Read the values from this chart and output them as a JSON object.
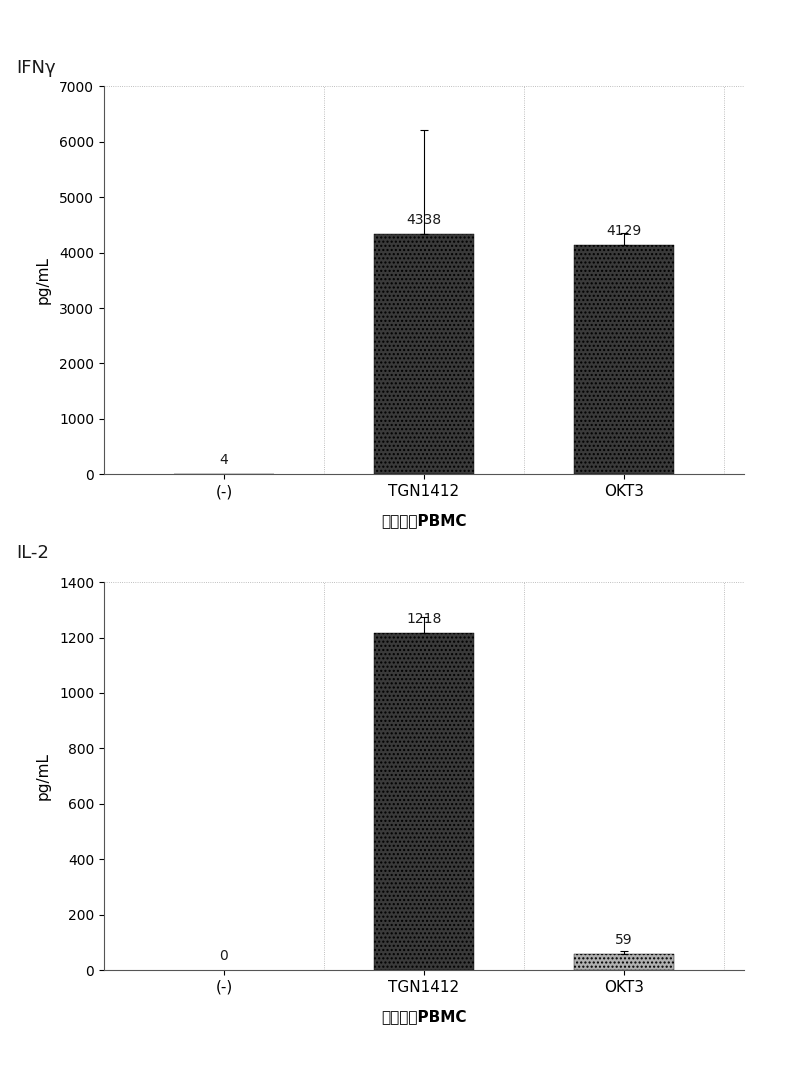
{
  "chart1": {
    "title": "IFNγ",
    "categories": [
      "(-)",
      "TGN1412",
      "OKT3"
    ],
    "values": [
      4,
      4338,
      4129
    ],
    "errors": [
      0,
      1870,
      230
    ],
    "ylabel": "pg/mL",
    "xlabel": "预培养的PBMC",
    "ylim": [
      0,
      7000
    ],
    "yticks": [
      0,
      1000,
      2000,
      3000,
      4000,
      5000,
      6000,
      7000
    ],
    "value_labels": [
      "4",
      "4338",
      "4129"
    ],
    "bar_width": 0.5,
    "bar_colors": [
      "#3a3a3a",
      "#3a3a3a",
      "#3a3a3a"
    ]
  },
  "chart2": {
    "title": "IL-2",
    "categories": [
      "(-)",
      "TGN1412",
      "OKT3"
    ],
    "values": [
      0,
      1218,
      59
    ],
    "errors": [
      0,
      55,
      12
    ],
    "ylabel": "pg/mL",
    "xlabel": "预培养的PBMC",
    "ylim": [
      0,
      1400
    ],
    "yticks": [
      0,
      200,
      400,
      600,
      800,
      1000,
      1200,
      1400
    ],
    "value_labels": [
      "0",
      "1218",
      "59"
    ],
    "bar_width": 0.5,
    "bar_colors": [
      "#3a3a3a",
      "#3a3a3a",
      "#b0b0b0"
    ]
  },
  "fig_bg": "#ffffff",
  "plot_bg": "#ffffff",
  "grid_color": "#cccccc",
  "text_color": "#1a1a1a"
}
